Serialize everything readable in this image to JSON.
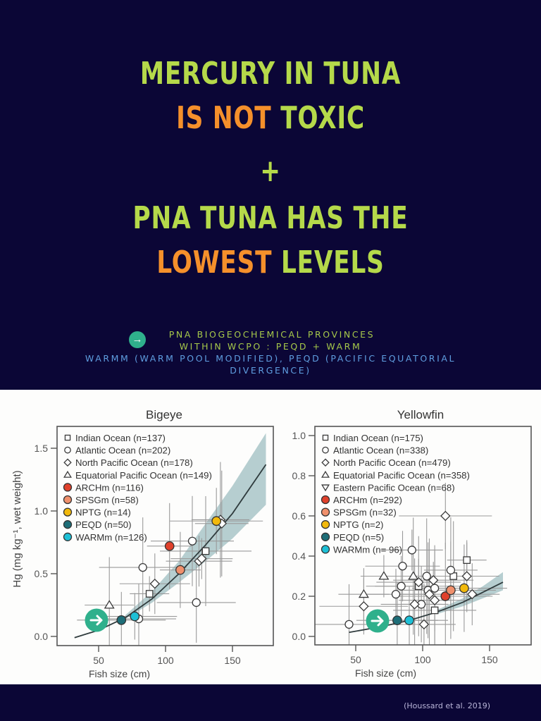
{
  "headline": {
    "line1": "MERCURY IN TUNA",
    "line2_highlight": "IS NOT",
    "line2_rest": " TOXIC",
    "plus": "+",
    "line3": "PNA TUNA HAS THE",
    "line4_highlight": "LOWEST",
    "line4_rest": " LEVELS",
    "colors": {
      "primary": "#b5d94a",
      "highlight": "#f5902b",
      "background": "#0b0636"
    }
  },
  "subtitle": {
    "arrow_icon": "→",
    "line1": "PNA BIOGEOCHEMICAL PROVINCES",
    "line2": "WITHIN WCPO : PEQD + WARM",
    "line3": "WARMM (WARM POOL MODIFIED), PEQD (PACIFIC EQUATORIAL",
    "line4": "DIVERGENCE)"
  },
  "citation": "(Houssard et al. 2019)",
  "chart_data": [
    {
      "type": "scatter",
      "title": "Bigeye",
      "xlabel": "Fish size (cm)",
      "ylabel": "Hg (mg kg⁻¹, wet weight)",
      "xlim": [
        25,
        180
      ],
      "ylim": [
        -0.07,
        1.62
      ],
      "xticks": [
        50,
        100,
        150
      ],
      "yticks": [
        "0.0",
        "0.5",
        "1.0",
        "1.5"
      ],
      "grid": false,
      "legend_position": "upper-left",
      "legend": [
        {
          "label": "Indian Ocean (n=137)",
          "marker": "square",
          "fill": "#ffffff"
        },
        {
          "label": "Atlantic Ocean (n=202)",
          "marker": "circle",
          "fill": "#ffffff"
        },
        {
          "label": "North Pacific Ocean (n=178)",
          "marker": "diamond",
          "fill": "#ffffff"
        },
        {
          "label": "Equatorial Pacific Ocean (n=149)",
          "marker": "triangle",
          "fill": "#ffffff"
        },
        {
          "label": "ARCHm (n=116)",
          "marker": "circle",
          "fill": "#e0412c"
        },
        {
          "label": "SPSGm (n=58)",
          "marker": "circle",
          "fill": "#f0906c"
        },
        {
          "label": "NPTG (n=14)",
          "marker": "circle",
          "fill": "#f2b90c"
        },
        {
          "label": "PEQD (n=50)",
          "marker": "circle",
          "fill": "#1e6e78"
        },
        {
          "label": "WARMm (n=126)",
          "marker": "circle",
          "fill": "#1ec0d6"
        }
      ],
      "points": [
        {
          "series": "Indian Ocean",
          "x": 88,
          "y": 0.34
        },
        {
          "series": "Indian Ocean",
          "x": 130,
          "y": 0.68
        },
        {
          "series": "Atlantic Ocean",
          "x": 83,
          "y": 0.55
        },
        {
          "series": "Atlantic Ocean",
          "x": 120,
          "y": 0.76
        },
        {
          "series": "Atlantic Ocean",
          "x": 123,
          "y": 0.27
        },
        {
          "series": "Atlantic Ocean",
          "x": 80,
          "y": 0.14
        },
        {
          "series": "North Pacific Ocean",
          "x": 92,
          "y": 0.42
        },
        {
          "series": "North Pacific Ocean",
          "x": 125,
          "y": 0.6
        },
        {
          "series": "North Pacific Ocean",
          "x": 127,
          "y": 0.62
        },
        {
          "series": "North Pacific Ocean",
          "x": 141,
          "y": 0.93
        },
        {
          "series": "North Pacific Ocean",
          "x": 142,
          "y": 0.9
        },
        {
          "series": "Equatorial Pacific Ocean",
          "x": 58,
          "y": 0.25
        },
        {
          "series": "ARCHm",
          "x": 103,
          "y": 0.72
        },
        {
          "series": "SPSGm",
          "x": 111,
          "y": 0.53
        },
        {
          "series": "NPTG",
          "x": 138,
          "y": 0.92
        },
        {
          "series": "PEQD",
          "x": 67,
          "y": 0.13
        },
        {
          "series": "WARMm",
          "x": 77,
          "y": 0.16
        }
      ],
      "fit_curve": {
        "x": [
          32,
          50,
          70,
          90,
          110,
          130,
          150,
          175
        ],
        "y": [
          -0.01,
          0.05,
          0.15,
          0.3,
          0.5,
          0.73,
          0.98,
          1.37
        ]
      },
      "confidence_band": {
        "x": [
          70,
          90,
          110,
          130,
          150,
          175
        ],
        "upper": [
          0.17,
          0.36,
          0.6,
          0.9,
          1.2,
          1.62
        ],
        "lower": [
          0.14,
          0.27,
          0.43,
          0.6,
          0.78,
          1.05
        ],
        "color": "#a9c5c8"
      }
    },
    {
      "type": "scatter",
      "title": "Yellowfin",
      "xlabel": "Fish size (cm)",
      "ylabel": "",
      "xlim": [
        20,
        175
      ],
      "ylim": [
        -0.05,
        1.05
      ],
      "xticks": [
        50,
        100,
        150
      ],
      "yticks": [
        "0.0",
        "0.2",
        "0.4",
        "0.6",
        "0.8",
        "1.0"
      ],
      "grid": false,
      "legend_position": "upper-left",
      "legend": [
        {
          "label": "Indian Ocean (n=175)",
          "marker": "square",
          "fill": "#ffffff"
        },
        {
          "label": "Atlantic Ocean (n=338)",
          "marker": "circle",
          "fill": "#ffffff"
        },
        {
          "label": "North Pacific Ocean (n=479)",
          "marker": "diamond",
          "fill": "#ffffff"
        },
        {
          "label": "Equatorial Pacific Ocean (n=358)",
          "marker": "triangle",
          "fill": "#ffffff"
        },
        {
          "label": "Eastern Pacific Ocean (n=68)",
          "marker": "triangle-down",
          "fill": "#ffffff"
        },
        {
          "label": "ARCHm (n=292)",
          "marker": "circle",
          "fill": "#e0412c"
        },
        {
          "label": "SPSGm (n=32)",
          "marker": "circle",
          "fill": "#f0906c"
        },
        {
          "label": "NPTG (n=2)",
          "marker": "circle",
          "fill": "#f2b90c"
        },
        {
          "label": "PEQD (n=5)",
          "marker": "circle",
          "fill": "#1e6e78"
        },
        {
          "label": "WARMm (n= 96)",
          "marker": "circle",
          "fill": "#1ec0d6"
        }
      ],
      "points": [
        {
          "series": "Indian Ocean",
          "x": 133,
          "y": 0.38
        },
        {
          "series": "Indian Ocean",
          "x": 123,
          "y": 0.3
        },
        {
          "series": "Indian Ocean",
          "x": 97,
          "y": 0.25
        },
        {
          "series": "Indian Ocean",
          "x": 109,
          "y": 0.13
        },
        {
          "series": "Atlantic Ocean",
          "x": 45,
          "y": 0.06
        },
        {
          "series": "Atlantic Ocean",
          "x": 85,
          "y": 0.35
        },
        {
          "series": "Atlantic Ocean",
          "x": 84,
          "y": 0.25
        },
        {
          "series": "Atlantic Ocean",
          "x": 80,
          "y": 0.21
        },
        {
          "series": "Atlantic Ocean",
          "x": 92,
          "y": 0.43
        },
        {
          "series": "Atlantic Ocean",
          "x": 103,
          "y": 0.3
        },
        {
          "series": "Atlantic Ocean",
          "x": 121,
          "y": 0.33
        },
        {
          "series": "Atlantic Ocean",
          "x": 104,
          "y": 0.23
        },
        {
          "series": "Atlantic Ocean",
          "x": 109,
          "y": 0.24
        },
        {
          "series": "Atlantic Ocean",
          "x": 99,
          "y": 0.16
        },
        {
          "series": "North Pacific Ocean",
          "x": 117,
          "y": 0.6
        },
        {
          "series": "North Pacific Ocean",
          "x": 56,
          "y": 0.15
        },
        {
          "series": "North Pacific Ocean",
          "x": 97,
          "y": 0.27
        },
        {
          "series": "North Pacific Ocean",
          "x": 108,
          "y": 0.28
        },
        {
          "series": "North Pacific Ocean",
          "x": 105,
          "y": 0.21
        },
        {
          "series": "North Pacific Ocean",
          "x": 109,
          "y": 0.18
        },
        {
          "series": "North Pacific Ocean",
          "x": 94,
          "y": 0.16
        },
        {
          "series": "North Pacific Ocean",
          "x": 101,
          "y": 0.06
        },
        {
          "series": "North Pacific Ocean",
          "x": 133,
          "y": 0.3
        },
        {
          "series": "North Pacific Ocean",
          "x": 137,
          "y": 0.21
        },
        {
          "series": "Equatorial Pacific Ocean",
          "x": 56,
          "y": 0.21
        },
        {
          "series": "Equatorial Pacific Ocean",
          "x": 71,
          "y": 0.3
        },
        {
          "series": "Equatorial Pacific Ocean",
          "x": 93,
          "y": 0.3
        },
        {
          "series": "ARCHm",
          "x": 117,
          "y": 0.2
        },
        {
          "series": "SPSGm",
          "x": 121,
          "y": 0.23
        },
        {
          "series": "NPTG",
          "x": 131,
          "y": 0.24
        },
        {
          "series": "PEQD",
          "x": 81,
          "y": 0.08
        },
        {
          "series": "WARMm",
          "x": 90,
          "y": 0.08
        }
      ],
      "fit_curve": {
        "x": [
          45,
          70,
          90,
          110,
          130,
          160
        ],
        "y": [
          0.02,
          0.05,
          0.08,
          0.12,
          0.17,
          0.27
        ]
      },
      "confidence_band": {
        "x": [
          110,
          130,
          145,
          160
        ],
        "upper": [
          0.13,
          0.19,
          0.25,
          0.32
        ],
        "lower": [
          0.11,
          0.15,
          0.19,
          0.23
        ],
        "color": "#a9c5c8"
      }
    }
  ]
}
